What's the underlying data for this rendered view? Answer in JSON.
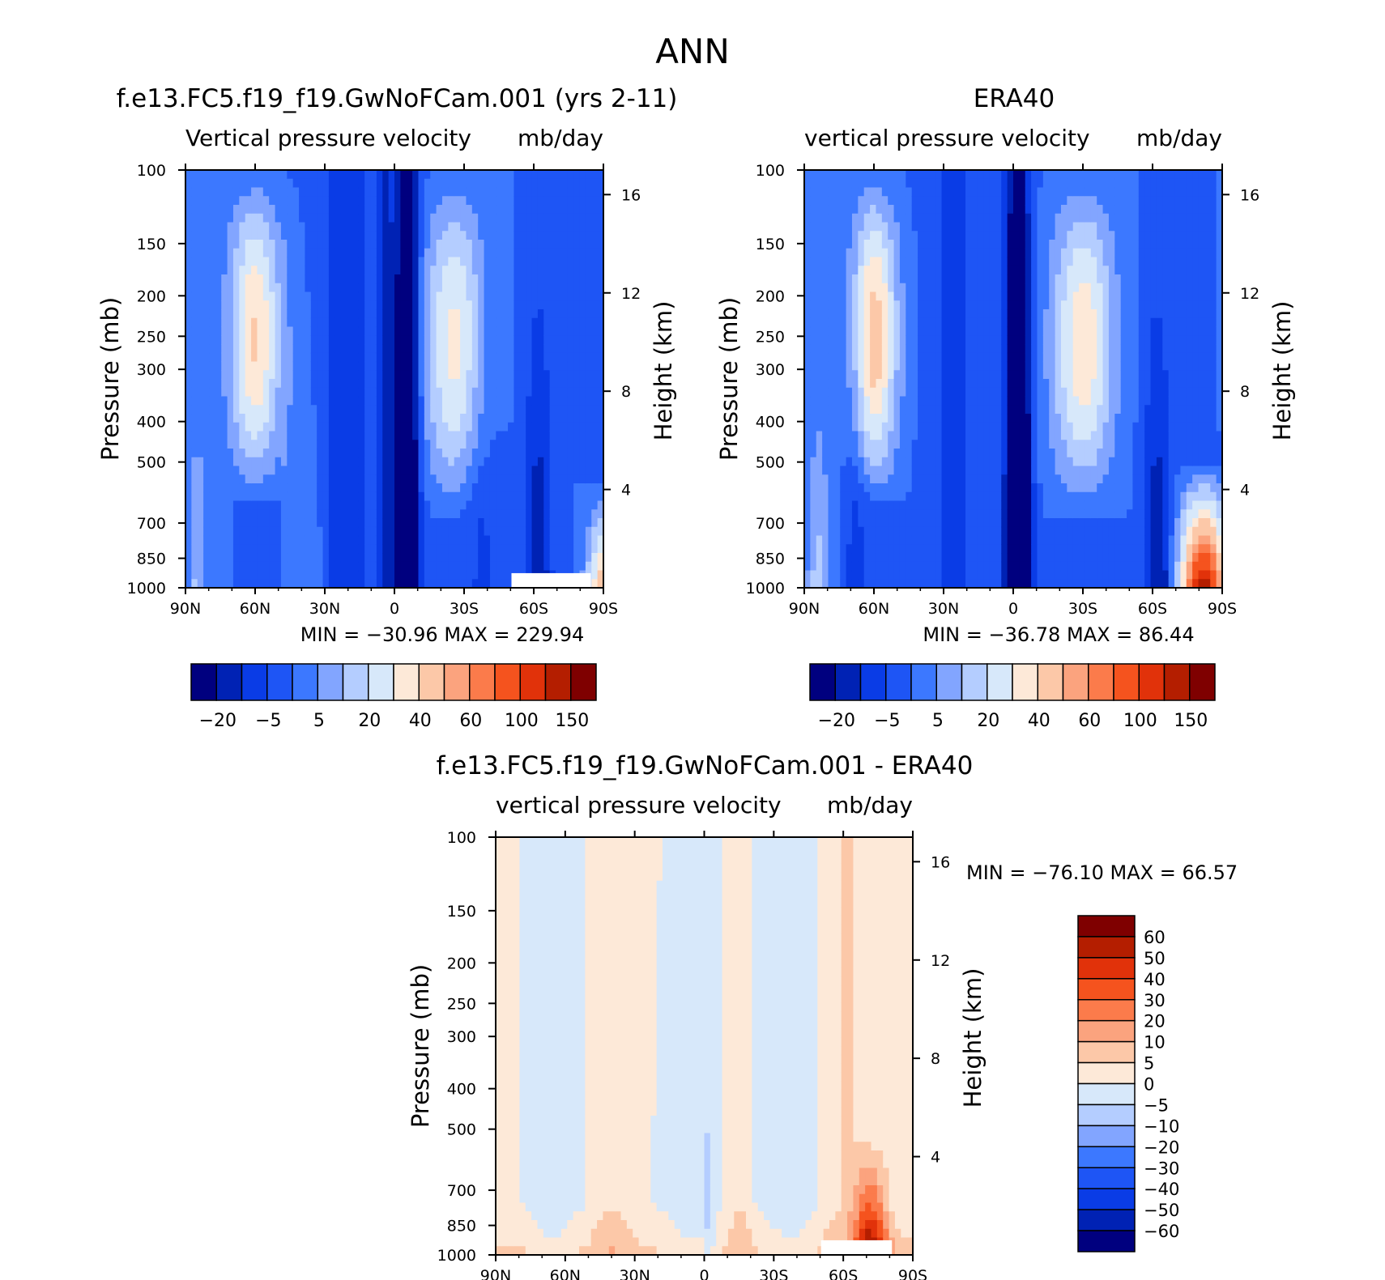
{
  "figure": {
    "title": "ANN"
  },
  "chart_data": [
    {
      "type": "heatmap",
      "id": "model",
      "title": "f.e13.FC5.f19_f19.GwNoFCam.001 (yrs 2-11)",
      "subtitle_left": "Vertical pressure velocity",
      "subtitle_right": "mb/day",
      "ylabel": "Pressure (mb)",
      "y2label": "Height (km)",
      "min_text": "MIN = -30.96",
      "max_text": "MAX = 229.94",
      "x_ticks": [
        "90N",
        "60N",
        "30N",
        "0",
        "30S",
        "60S",
        "90S"
      ],
      "y_ticks": [
        "100",
        "150",
        "200",
        "250",
        "300",
        "400",
        "500",
        "700",
        "850",
        "1000"
      ],
      "y2_ticks": [
        "16",
        "12",
        "8",
        "4"
      ],
      "colorbar_labels": [
        "-20",
        "-5",
        "5",
        "20",
        "40",
        "60",
        "100",
        "150"
      ],
      "grid": false
    },
    {
      "type": "heatmap",
      "id": "obs",
      "title": "ERA40",
      "subtitle_left": "vertical pressure velocity",
      "subtitle_right": "mb/day",
      "ylabel": "Pressure (mb)",
      "y2label": "Height (km)",
      "min_text": "MIN = -36.78",
      "max_text": "MAX = 86.44",
      "x_ticks": [
        "90N",
        "60N",
        "30N",
        "0",
        "30S",
        "60S",
        "90S"
      ],
      "y_ticks": [
        "100",
        "150",
        "200",
        "250",
        "300",
        "400",
        "500",
        "700",
        "850",
        "1000"
      ],
      "y2_ticks": [
        "16",
        "12",
        "8",
        "4"
      ],
      "colorbar_labels": [
        "-20",
        "-5",
        "5",
        "20",
        "40",
        "60",
        "100",
        "150"
      ],
      "grid": false
    },
    {
      "type": "heatmap",
      "id": "diff",
      "title": "f.e13.FC5.f19_f19.GwNoFCam.001 - ERA40",
      "subtitle_left": "vertical pressure velocity",
      "subtitle_right": "mb/day",
      "ylabel": "Pressure (mb)",
      "y2label": "Height (km)",
      "min_text": "MIN = -76.10",
      "max_text": "MAX = 66.57",
      "x_ticks": [
        "90N",
        "60N",
        "30N",
        "0",
        "30S",
        "60S",
        "90S"
      ],
      "y_ticks": [
        "100",
        "150",
        "200",
        "250",
        "300",
        "400",
        "500",
        "700",
        "850",
        "1000"
      ],
      "y2_ticks": [
        "16",
        "12",
        "8",
        "4"
      ],
      "colorbar_labels": [
        "60",
        "50",
        "40",
        "30",
        "20",
        "10",
        "5",
        "0",
        "-5",
        "-10",
        "-20",
        "-30",
        "-40",
        "-50",
        "-60"
      ],
      "grid": false
    }
  ],
  "colors": {
    "scale_main": [
      "#00007f",
      "#0022b4",
      "#0a3ce6",
      "#1e55f5",
      "#3c78ff",
      "#82a5ff",
      "#b4cdff",
      "#d7e8fa",
      "#fde9d8",
      "#fcc8a8",
      "#fba37e",
      "#fb7b4b",
      "#f5531e",
      "#e1320a",
      "#b41e00",
      "#7f0000"
    ],
    "scale_diff": [
      "#7f0000",
      "#b41e00",
      "#e1320a",
      "#f5531e",
      "#fb7b4b",
      "#fba37e",
      "#fcc8a8",
      "#fde9d8",
      "#d7e8fa",
      "#b4cdff",
      "#82a5ff",
      "#3c78ff",
      "#1e55f5",
      "#0a3ce6",
      "#0022b4",
      "#00007f"
    ]
  }
}
